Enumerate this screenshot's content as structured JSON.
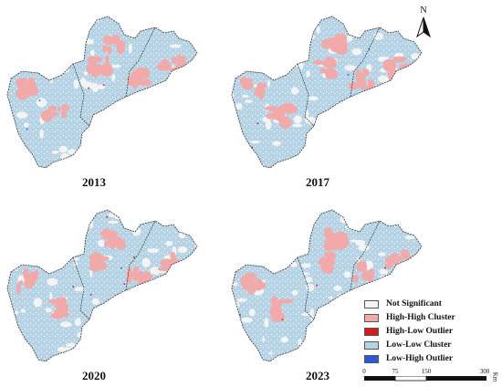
{
  "panels": [
    {
      "year": "2013"
    },
    {
      "year": "2017"
    },
    {
      "year": "2020"
    },
    {
      "year": "2023"
    }
  ],
  "legend": {
    "items": [
      {
        "label": "Not Significant",
        "color": "#f4f4f4"
      },
      {
        "label": "High-High Cluster",
        "color": "#f2a9aa"
      },
      {
        "label": "High-Low Outlier",
        "color": "#d7191c"
      },
      {
        "label": "Low-Low Cluster",
        "color": "#b7d4e6"
      },
      {
        "label": "Low-High Outlier",
        "color": "#2c57d6"
      }
    ]
  },
  "scale_bar": {
    "ticks": [
      "0",
      "75",
      "150",
      "300"
    ],
    "unit": "Km"
  },
  "north_arrow": {
    "label": "N"
  }
}
